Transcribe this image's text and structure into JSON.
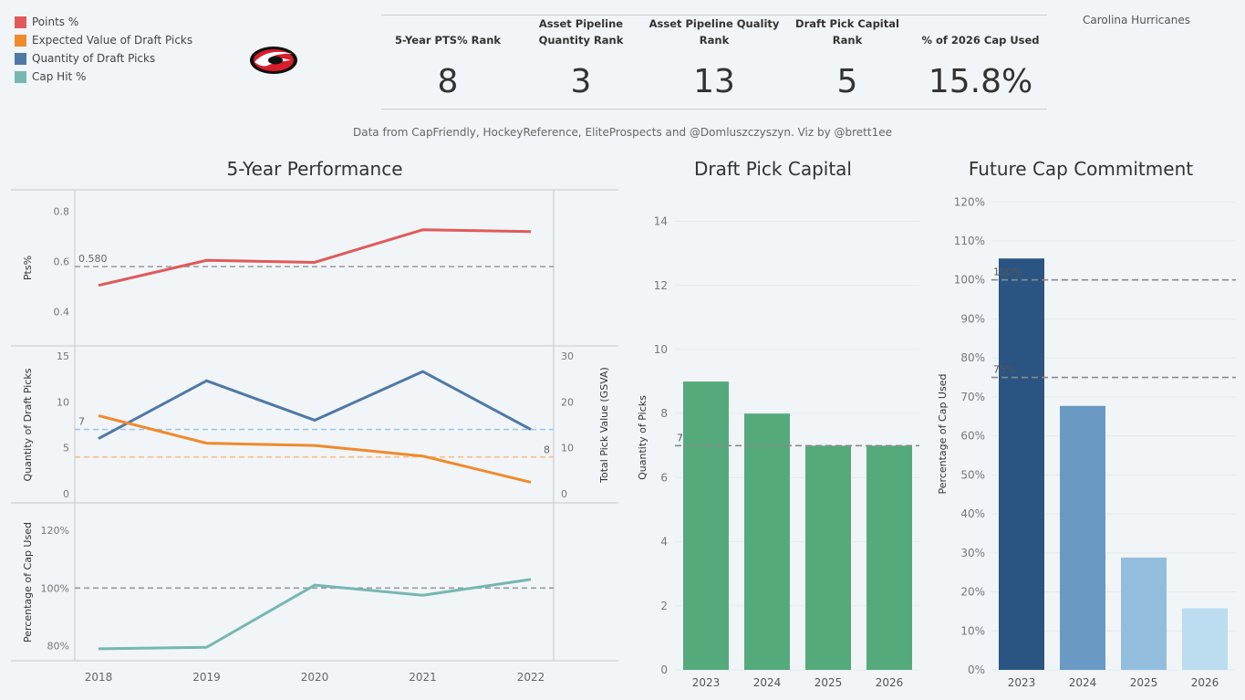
{
  "team": "Carolina Hurricanes",
  "legend": [
    {
      "label": "Points %",
      "color": "#e05a5a"
    },
    {
      "label": "Expected Value of Draft Picks",
      "color": "#f08a2c"
    },
    {
      "label": "Quantity of Draft Picks",
      "color": "#4e79a7"
    },
    {
      "label": "Cap Hit %",
      "color": "#76b7b2"
    }
  ],
  "kpis": [
    {
      "header": "5-Year PTS% Rank",
      "value": "8"
    },
    {
      "header": "Asset Pipeline Quantity Rank",
      "value": "3"
    },
    {
      "header": "Asset Pipeline Quality Rank",
      "value": "13"
    },
    {
      "header": "Draft Pick Capital Rank",
      "value": "5"
    },
    {
      "header": "% of 2026 Cap Used",
      "value": "15.8%"
    }
  ],
  "source": "Data from CapFriendly, HockeyReference, EliteProspects and @Domluszczyszyn. Viz by @brett1ee",
  "titles": {
    "performance": "5-Year Performance",
    "draft": "Draft Pick Capital",
    "cap": "Future Cap Commitment"
  },
  "chart_data": [
    {
      "type": "line",
      "title": "5-Year Performance",
      "x": [
        "2018",
        "2019",
        "2020",
        "2021",
        "2022"
      ],
      "panels": [
        {
          "ylabel": "Pts%",
          "ylim": [
            0.3,
            0.85
          ],
          "yticks": [
            "0.4",
            "0.6",
            "0.8"
          ],
          "series": [
            {
              "name": "Points %",
              "color": "#e05a5a",
              "values": [
                0.505,
                0.605,
                0.597,
                0.727,
                0.72
              ]
            }
          ],
          "reference": {
            "value": 0.58,
            "label": "0.580",
            "color": "#999999"
          }
        },
        {
          "ylabel": "Quantity of Draft Picks",
          "y2label": "Total Pick Value (GSVA)",
          "ylim": [
            0,
            15
          ],
          "y2lim": [
            0,
            30
          ],
          "yticks": [
            "0",
            "5",
            "10",
            "15"
          ],
          "y2ticks": [
            "0",
            "10",
            "20",
            "30"
          ],
          "series": [
            {
              "name": "Quantity of Draft Picks",
              "color": "#4e79a7",
              "axis": "left",
              "values": [
                6,
                12.3,
                8,
                13.3,
                7
              ]
            },
            {
              "name": "Expected Value of Draft Picks",
              "color": "#f08a2c",
              "axis": "right",
              "values": [
                17,
                11,
                10.5,
                8.2,
                2.5
              ]
            }
          ],
          "references": [
            {
              "value": 7,
              "label": "7",
              "axis": "left",
              "color": "#9cc7ea"
            },
            {
              "value": 8,
              "label": "8",
              "axis": "right",
              "color": "#f8bf85"
            }
          ]
        },
        {
          "ylabel": "Percentage of Cap Used",
          "ylim": [
            0.78,
            1.26
          ],
          "yticks": [
            "80%",
            "100%",
            "120%"
          ],
          "series": [
            {
              "name": "Cap Hit %",
              "color": "#76b7b2",
              "values": [
                0.79,
                0.795,
                1.01,
                0.975,
                1.03
              ]
            }
          ],
          "reference": {
            "value": 1.0,
            "color": "#999999"
          }
        }
      ]
    },
    {
      "type": "bar",
      "title": "Draft Pick Capital",
      "categories": [
        "2023",
        "2024",
        "2025",
        "2026"
      ],
      "values": [
        9,
        8,
        7,
        7
      ],
      "ylabel": "Quantity of Picks",
      "ylim": [
        0,
        14.5
      ],
      "yticks": [
        "0",
        "2",
        "4",
        "6",
        "8",
        "10",
        "12",
        "14"
      ],
      "color": "#55aa7c",
      "reference": {
        "value": 7,
        "label": "7"
      }
    },
    {
      "type": "bar",
      "title": "Future Cap Commitment",
      "categories": [
        "2023",
        "2024",
        "2025",
        "2026"
      ],
      "values": [
        1.055,
        0.677,
        0.288,
        0.158
      ],
      "colors": [
        "#2a5583",
        "#6a99c4",
        "#93bddc",
        "#bbddef"
      ],
      "ylabel": "Percentage of Cap Used",
      "ylim": [
        0,
        1.21
      ],
      "yticks": [
        "0%",
        "10%",
        "20%",
        "30%",
        "40%",
        "50%",
        "60%",
        "70%",
        "80%",
        "90%",
        "100%",
        "110%",
        "120%"
      ],
      "references": [
        {
          "value": 1.0,
          "label": "100%"
        },
        {
          "value": 0.75,
          "label": "75%"
        }
      ]
    }
  ]
}
